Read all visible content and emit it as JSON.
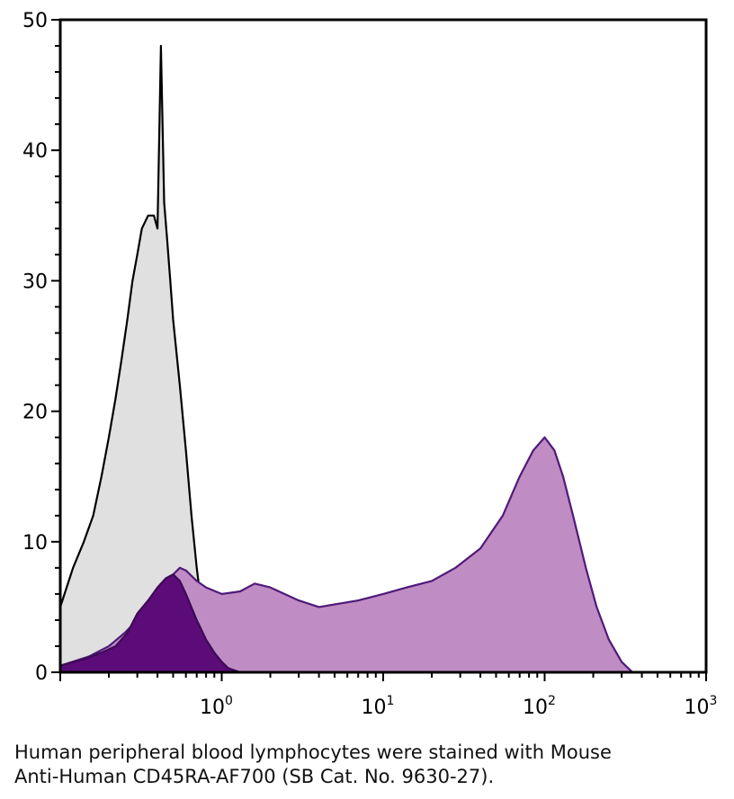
{
  "chart_data": {
    "type": "area",
    "title": "",
    "xlabel": "",
    "ylabel": "",
    "x_scale": "log",
    "xlim": [
      0.1,
      1000
    ],
    "ylim": [
      0,
      50
    ],
    "grid": false,
    "y_ticks": [
      "0",
      "10",
      "20",
      "30",
      "40",
      "50"
    ],
    "x_ticks": [
      {
        "base": "10",
        "exp": "0"
      },
      {
        "base": "10",
        "exp": "1"
      },
      {
        "base": "10",
        "exp": "2"
      },
      {
        "base": "10",
        "exp": "3"
      }
    ],
    "series": [
      {
        "fill": "#e0e0e0",
        "stroke": "#000000",
        "x": [
          0.1,
          0.12,
          0.14,
          0.16,
          0.18,
          0.2,
          0.22,
          0.24,
          0.26,
          0.28,
          0.3,
          0.32,
          0.35,
          0.38,
          0.4,
          0.42,
          0.44,
          0.46,
          0.48,
          0.5,
          0.55,
          0.6,
          0.65,
          0.7,
          0.75,
          0.8,
          0.85,
          0.9,
          1.0,
          1.2,
          1.5,
          2.0
        ],
        "y": [
          5,
          8,
          10,
          12,
          15,
          18,
          21,
          24,
          27,
          30,
          32,
          34,
          35,
          35,
          34,
          48,
          36,
          33,
          30,
          27,
          22,
          17,
          12,
          8,
          5,
          3,
          2,
          1,
          0.6,
          0.3,
          0.2,
          0
        ]
      },
      {
        "fill": "#c08cc4",
        "stroke": "#4f1a78",
        "x": [
          0.1,
          0.15,
          0.2,
          0.25,
          0.3,
          0.35,
          0.4,
          0.45,
          0.5,
          0.55,
          0.6,
          0.7,
          0.8,
          1.0,
          1.3,
          1.6,
          2.0,
          3.0,
          4.0,
          5.0,
          7.0,
          10.0,
          14.0,
          20.0,
          28.0,
          40.0,
          55.0,
          70.0,
          85.0,
          100.0,
          115.0,
          130.0,
          150.0,
          180.0,
          210.0,
          250.0,
          300.0,
          350.0
        ],
        "y": [
          0.5,
          1.2,
          2,
          3,
          4,
          5,
          6,
          7,
          7.5,
          8,
          7.8,
          7,
          6.5,
          6,
          6.2,
          6.8,
          6.5,
          5.5,
          5,
          5.2,
          5.5,
          6,
          6.5,
          7,
          8,
          9.5,
          12,
          15,
          17,
          18,
          17,
          15,
          12,
          8,
          5,
          2.5,
          0.8,
          0
        ]
      },
      {
        "fill": "#5c0c78",
        "stroke": "#3d0a55",
        "x": [
          0.1,
          0.14,
          0.18,
          0.22,
          0.26,
          0.3,
          0.35,
          0.4,
          0.45,
          0.5,
          0.55,
          0.6,
          0.7,
          0.8,
          0.9,
          1.0,
          1.1,
          1.3
        ],
        "y": [
          0.5,
          1,
          1.5,
          2,
          3,
          4.5,
          5.5,
          6.5,
          7.2,
          7.5,
          7,
          6,
          4,
          2.5,
          1.5,
          0.8,
          0.3,
          0
        ]
      }
    ]
  },
  "caption": {
    "line1": "Human peripheral blood lymphocytes were stained with Mouse",
    "line2": "Anti-Human CD45RA-AF700 (SB Cat. No. 9630-27)."
  }
}
